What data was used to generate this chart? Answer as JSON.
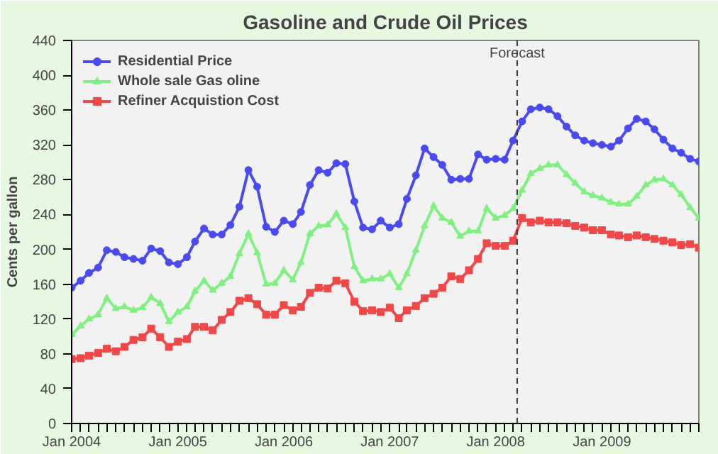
{
  "chart_data": {
    "type": "line",
    "title": "Gasoline and Crude Oil Prices",
    "ylabel": "Cents per gallon",
    "x": [
      "2004-01",
      "2004-02",
      "2004-03",
      "2004-04",
      "2004-05",
      "2004-06",
      "2004-07",
      "2004-08",
      "2004-09",
      "2004-10",
      "2004-11",
      "2004-12",
      "2005-01",
      "2005-02",
      "2005-03",
      "2005-04",
      "2005-05",
      "2005-06",
      "2005-07",
      "2005-08",
      "2005-09",
      "2005-10",
      "2005-11",
      "2005-12",
      "2006-01",
      "2006-02",
      "2006-03",
      "2006-04",
      "2006-05",
      "2006-06",
      "2006-07",
      "2006-08",
      "2006-09",
      "2006-10",
      "2006-11",
      "2006-12",
      "2007-01",
      "2007-02",
      "2007-03",
      "2007-04",
      "2007-05",
      "2007-06",
      "2007-07",
      "2007-08",
      "2007-09",
      "2007-10",
      "2007-11",
      "2007-12",
      "2008-01",
      "2008-02",
      "2008-03",
      "2008-04",
      "2008-05",
      "2008-06",
      "2008-07",
      "2008-08",
      "2008-09",
      "2008-10",
      "2008-11",
      "2008-12",
      "2009-01",
      "2009-02",
      "2009-03",
      "2009-04",
      "2009-05",
      "2009-06",
      "2009-07",
      "2009-08",
      "2009-09",
      "2009-10",
      "2009-11",
      "2009-12"
    ],
    "series": [
      {
        "name": "Residential Price",
        "color": "#4a4af0",
        "marker": "circle",
        "values": [
          156,
          164,
          173,
          179,
          199,
          197,
          191,
          189,
          187,
          201,
          198,
          185,
          183,
          191,
          209,
          224,
          217,
          217,
          228,
          249,
          291,
          272,
          226,
          220,
          233,
          229,
          243,
          274,
          291,
          288,
          299,
          298,
          255,
          225,
          223,
          233,
          225,
          229,
          258,
          285,
          316,
          306,
          297,
          280,
          281,
          281,
          309,
          303,
          304,
          303,
          325,
          347,
          361,
          363,
          361,
          353,
          341,
          331,
          325,
          322,
          320,
          318,
          325,
          339,
          350,
          347,
          338,
          326,
          316,
          311,
          304,
          301
        ]
      },
      {
        "name": "Whole sale Gas oline",
        "color": "#80f080",
        "marker": "triangle",
        "values": [
          102,
          112,
          120,
          125,
          144,
          132,
          134,
          130,
          133,
          145,
          138,
          117,
          128,
          134,
          152,
          164,
          153,
          161,
          169,
          195,
          218,
          196,
          160,
          161,
          176,
          165,
          185,
          218,
          227,
          228,
          241,
          225,
          180,
          164,
          166,
          166,
          172,
          156,
          172,
          199,
          227,
          250,
          236,
          231,
          215,
          221,
          221,
          247,
          236,
          239,
          247,
          268,
          287,
          293,
          297,
          297,
          286,
          276,
          266,
          262,
          259,
          254,
          252,
          252,
          261,
          274,
          280,
          281,
          274,
          263,
          248,
          236
        ]
      },
      {
        "name": "Refiner Acquistion Cost",
        "color": "#f04848",
        "marker": "square",
        "values": [
          74,
          75,
          78,
          81,
          86,
          83,
          88,
          96,
          99,
          109,
          99,
          88,
          94,
          97,
          111,
          111,
          107,
          119,
          128,
          141,
          144,
          137,
          125,
          125,
          136,
          130,
          134,
          150,
          156,
          155,
          164,
          161,
          140,
          129,
          130,
          128,
          133,
          121,
          130,
          135,
          144,
          149,
          156,
          169,
          166,
          176,
          189,
          207,
          204,
          204,
          210,
          236,
          231,
          233,
          231,
          231,
          230,
          227,
          225,
          222,
          222,
          217,
          216,
          214,
          216,
          214,
          212,
          210,
          208,
          205,
          206,
          202
        ]
      }
    ],
    "xlim": [
      "2004-01",
      "2009-12"
    ],
    "xticks": [
      {
        "value": "2004-01",
        "label": "Jan 2004"
      },
      {
        "value": "2004-02",
        "label": null
      },
      {
        "value": "2004-03",
        "label": null
      },
      {
        "value": "2004-04",
        "label": null
      },
      {
        "value": "2004-05",
        "label": null
      },
      {
        "value": "2004-06",
        "label": null
      },
      {
        "value": "2004-07",
        "label": null
      },
      {
        "value": "2004-08",
        "label": null
      },
      {
        "value": "2004-09",
        "label": null
      },
      {
        "value": "2004-10",
        "label": null
      },
      {
        "value": "2004-11",
        "label": null
      },
      {
        "value": "2004-12",
        "label": null
      },
      {
        "value": "2005-01",
        "label": "Jan 2005"
      },
      {
        "value": "2005-02",
        "label": null
      },
      {
        "value": "2005-03",
        "label": null
      },
      {
        "value": "2005-04",
        "label": null
      },
      {
        "value": "2005-05",
        "label": null
      },
      {
        "value": "2005-06",
        "label": null
      },
      {
        "value": "2005-07",
        "label": null
      },
      {
        "value": "2005-08",
        "label": null
      },
      {
        "value": "2005-09",
        "label": null
      },
      {
        "value": "2005-10",
        "label": null
      },
      {
        "value": "2005-11",
        "label": null
      },
      {
        "value": "2005-12",
        "label": null
      },
      {
        "value": "2006-01",
        "label": "Jan 2006"
      },
      {
        "value": "2006-02",
        "label": null
      },
      {
        "value": "2006-03",
        "label": null
      },
      {
        "value": "2006-04",
        "label": null
      },
      {
        "value": "2006-05",
        "label": null
      },
      {
        "value": "2006-06",
        "label": null
      },
      {
        "value": "2006-07",
        "label": null
      },
      {
        "value": "2006-08",
        "label": null
      },
      {
        "value": "2006-09",
        "label": null
      },
      {
        "value": "2006-10",
        "label": null
      },
      {
        "value": "2006-11",
        "label": null
      },
      {
        "value": "2006-12",
        "label": null
      },
      {
        "value": "2007-01",
        "label": "Jan 2007"
      },
      {
        "value": "2007-02",
        "label": null
      },
      {
        "value": "2007-03",
        "label": null
      },
      {
        "value": "2007-04",
        "label": null
      },
      {
        "value": "2007-05",
        "label": null
      },
      {
        "value": "2007-06",
        "label": null
      },
      {
        "value": "2007-07",
        "label": null
      },
      {
        "value": "2007-08",
        "label": null
      },
      {
        "value": "2007-09",
        "label": null
      },
      {
        "value": "2007-10",
        "label": null
      },
      {
        "value": "2007-11",
        "label": null
      },
      {
        "value": "2007-12",
        "label": null
      },
      {
        "value": "2008-01",
        "label": "Jan 2008"
      },
      {
        "value": "2008-02",
        "label": null
      },
      {
        "value": "2008-03",
        "label": null
      },
      {
        "value": "2008-04",
        "label": null
      },
      {
        "value": "2008-05",
        "label": null
      },
      {
        "value": "2008-06",
        "label": null
      },
      {
        "value": "2008-07",
        "label": null
      },
      {
        "value": "2008-08",
        "label": null
      },
      {
        "value": "2008-09",
        "label": null
      },
      {
        "value": "2008-10",
        "label": null
      },
      {
        "value": "2008-11",
        "label": null
      },
      {
        "value": "2008-12",
        "label": null
      },
      {
        "value": "2009-01",
        "label": "Jan 2009"
      },
      {
        "value": "2009-02",
        "label": null
      },
      {
        "value": "2009-03",
        "label": null
      },
      {
        "value": "2009-04",
        "label": null
      },
      {
        "value": "2009-05",
        "label": null
      },
      {
        "value": "2009-06",
        "label": null
      },
      {
        "value": "2009-07",
        "label": null
      },
      {
        "value": "2009-08",
        "label": null
      },
      {
        "value": "2009-09",
        "label": null
      },
      {
        "value": "2009-10",
        "label": null
      },
      {
        "value": "2009-11",
        "label": null
      },
      {
        "value": "2009-12",
        "label": null
      }
    ],
    "ylim": [
      0,
      440
    ],
    "yticks": [
      0,
      40,
      80,
      120,
      160,
      200,
      240,
      280,
      320,
      360,
      400,
      440
    ],
    "ref_lines": [
      {
        "axis": "x",
        "value": "2008-03-15",
        "label": "Forecast",
        "color": "#333333",
        "line_style": "dashed"
      }
    ],
    "grid": false,
    "legend": "top left",
    "line_style": "solid"
  }
}
